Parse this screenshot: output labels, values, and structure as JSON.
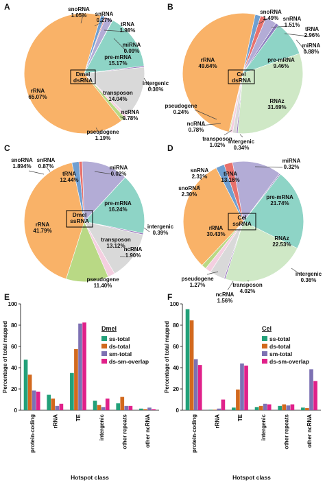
{
  "panels": [
    "A",
    "B",
    "C",
    "D",
    "E",
    "F"
  ],
  "chart_data": [
    {
      "type": "pie",
      "panel": "A",
      "center_label": [
        "Dmel",
        "dsRNA"
      ],
      "slices": [
        {
          "name": "snoRNA",
          "value": 1.05,
          "label": "1.05%",
          "color": "#6f9fd1"
        },
        {
          "name": "snRNA",
          "value": 0.27,
          "label": "0.27%",
          "color": "#e8716c"
        },
        {
          "name": "tRNA",
          "value": 1.98,
          "label": "1.98%",
          "color": "#b3acd6"
        },
        {
          "name": "miRNA",
          "value": 0.09,
          "label": "0.09%",
          "color": "#8e7fbf"
        },
        {
          "name": "pre-mRNA",
          "value": 15.17,
          "label": "15.17%",
          "color": "#8ed4c6"
        },
        {
          "name": "intergenic",
          "value": 0.36,
          "label": "0.36%",
          "color": "#9b78bd"
        },
        {
          "name": "transposon",
          "value": 14.04,
          "label": "14.04%",
          "color": "#d9d9d9"
        },
        {
          "name": "ncRNA",
          "value": 0.78,
          "label": "0.78%",
          "color": "#f4cfe0"
        },
        {
          "name": "pseudogene",
          "value": 1.19,
          "label": "1.19%",
          "color": "#b9d985"
        },
        {
          "name": "rRNA",
          "value": 65.07,
          "label": "65.07%",
          "color": "#f9b268"
        }
      ]
    },
    {
      "type": "pie",
      "panel": "B",
      "center_label": [
        "Cel",
        "dsRNA"
      ],
      "slices": [
        {
          "name": "snoRNA",
          "value": 1.49,
          "label": "1.49%",
          "color": "#6f9fd1"
        },
        {
          "name": "snRNA",
          "value": 1.51,
          "label": "1.51%",
          "color": "#e8716c"
        },
        {
          "name": "tRNA",
          "value": 2.96,
          "label": "2.96%",
          "color": "#b3acd6"
        },
        {
          "name": "miRNA",
          "value": 0.88,
          "label": "0.88%",
          "color": "#8e7fbf"
        },
        {
          "name": "pre-mRNA",
          "value": 9.46,
          "label": "9.46%",
          "color": "#8ed4c6"
        },
        {
          "name": "RNAz",
          "value": 31.69,
          "label": "31.69%",
          "color": "#cfe8c6"
        },
        {
          "name": "intergenic",
          "value": 0.34,
          "label": "0.34%",
          "color": "#9b78bd"
        },
        {
          "name": "transposon",
          "value": 1.02,
          "label": "1.02%",
          "color": "#d9d9d9"
        },
        {
          "name": "ncRNA",
          "value": 0.78,
          "label": "0.78%",
          "color": "#f4cfe0"
        },
        {
          "name": "pseudogene",
          "value": 0.24,
          "label": "0.24%",
          "color": "#b9d985"
        },
        {
          "name": "rRNA",
          "value": 49.64,
          "label": "49.64%",
          "color": "#f9b268"
        }
      ]
    },
    {
      "type": "pie",
      "panel": "C",
      "center_label": [
        "Dmel",
        "ssRNA"
      ],
      "slices": [
        {
          "name": "snoRNA",
          "value": 1.894,
          "label": "1.894%",
          "color": "#6f9fd1"
        },
        {
          "name": "snRNA",
          "value": 0.87,
          "label": "0.87%",
          "color": "#e8716c"
        },
        {
          "name": "tRNA",
          "value": 12.44,
          "label": "12.44%",
          "color": "#b3acd6"
        },
        {
          "name": "miRNA",
          "value": 0.02,
          "label": "0.02%",
          "color": "#8e7fbf"
        },
        {
          "name": "pre-mRNA",
          "value": 16.24,
          "label": "16.24%",
          "color": "#8ed4c6"
        },
        {
          "name": "intergenic",
          "value": 0.39,
          "label": "0.39%",
          "color": "#9b78bd"
        },
        {
          "name": "transposon",
          "value": 13.12,
          "label": "13.12%",
          "color": "#d9d9d9"
        },
        {
          "name": "ncRNA",
          "value": 1.9,
          "label": "1.90%",
          "color": "#f4cfe0"
        },
        {
          "name": "pseudogene",
          "value": 11.4,
          "label": "11.40%",
          "color": "#b9d985"
        },
        {
          "name": "rRNA",
          "value": 41.79,
          "label": "41.79%",
          "color": "#f9b268"
        }
      ]
    },
    {
      "type": "pie",
      "panel": "D",
      "center_label": [
        "Cel",
        "ssRNA"
      ],
      "slices": [
        {
          "name": "snoRNA",
          "value": 2.3,
          "label": "2.30%",
          "color": "#6f9fd1"
        },
        {
          "name": "snRNA",
          "value": 2.31,
          "label": "2.31%",
          "color": "#e8716c"
        },
        {
          "name": "tRNA",
          "value": 13.16,
          "label": "13.16%",
          "color": "#b3acd6"
        },
        {
          "name": "miRNA",
          "value": 0.32,
          "label": "0.32%",
          "color": "#8e7fbf"
        },
        {
          "name": "pre-mRNA",
          "value": 21.74,
          "label": "21.74%",
          "color": "#8ed4c6"
        },
        {
          "name": "RNAz",
          "value": 22.53,
          "label": "22.53%",
          "color": "#cfe8c6"
        },
        {
          "name": "intergenic",
          "value": 0.36,
          "label": "0.36%",
          "color": "#9b78bd"
        },
        {
          "name": "transposon",
          "value": 4.02,
          "label": "4.02%",
          "color": "#d9d9d9"
        },
        {
          "name": "ncRNA",
          "value": 1.56,
          "label": "1.56%",
          "color": "#f4cfe0"
        },
        {
          "name": "pseudogene",
          "value": 1.27,
          "label": "1.27%",
          "color": "#b9d985"
        },
        {
          "name": "rRNA",
          "value": 30.43,
          "label": "30.43%",
          "color": "#f9b268"
        }
      ]
    },
    {
      "type": "bar",
      "panel": "E",
      "legend_title": "Dmel",
      "legend_position": "top-right",
      "ylabel": "Percentage of total mapped",
      "xlabel": "Hotspot class",
      "ylim": [
        0,
        100
      ],
      "yticks": [
        0,
        20,
        40,
        60,
        80,
        100
      ],
      "categories": [
        "protein-coding",
        "rRNA",
        "TE",
        "intergenic",
        "other repeats",
        "other ncRNA"
      ],
      "series": [
        {
          "name": "ss-total",
          "color": "#22a079",
          "values": [
            47.5,
            14.5,
            35,
            9,
            6.5,
            1.5
          ]
        },
        {
          "name": "ds-total",
          "color": "#d2691e",
          "values": [
            33.5,
            11,
            57.5,
            5,
            12.5,
            1
          ]
        },
        {
          "name": "sm-total",
          "color": "#7d71b3",
          "values": [
            18.5,
            4,
            81.5,
            3,
            4,
            2.5
          ]
        },
        {
          "name": "ds-sm-overlap",
          "color": "#e0218a",
          "values": [
            17.5,
            6,
            82.5,
            11,
            4,
            1
          ]
        }
      ]
    },
    {
      "type": "bar",
      "panel": "F",
      "legend_title": "Cel",
      "legend_position": "top-right",
      "ylabel": "Percentage of total mapped",
      "xlabel": "Hotspot class",
      "ylim": [
        0,
        100
      ],
      "yticks": [
        0,
        20,
        40,
        60,
        80,
        100
      ],
      "categories": [
        "protein-coding",
        "rRNA",
        "TE",
        "intergenic",
        "other repeats",
        "other ncRNA"
      ],
      "series": [
        {
          "name": "ss-total",
          "color": "#22a079",
          "values": [
            95,
            0.5,
            2.5,
            3,
            4,
            2.5
          ]
        },
        {
          "name": "ds-total",
          "color": "#d2691e",
          "values": [
            84.5,
            0.5,
            19.5,
            4,
            5.5,
            2
          ]
        },
        {
          "name": "sm-total",
          "color": "#7d71b3",
          "values": [
            48,
            1.5,
            44,
            6,
            4.5,
            38.5
          ]
        },
        {
          "name": "ds-sm-overlap",
          "color": "#e0218a",
          "values": [
            42.5,
            10,
            42,
            5.5,
            5.5,
            27.5
          ]
        }
      ]
    }
  ]
}
